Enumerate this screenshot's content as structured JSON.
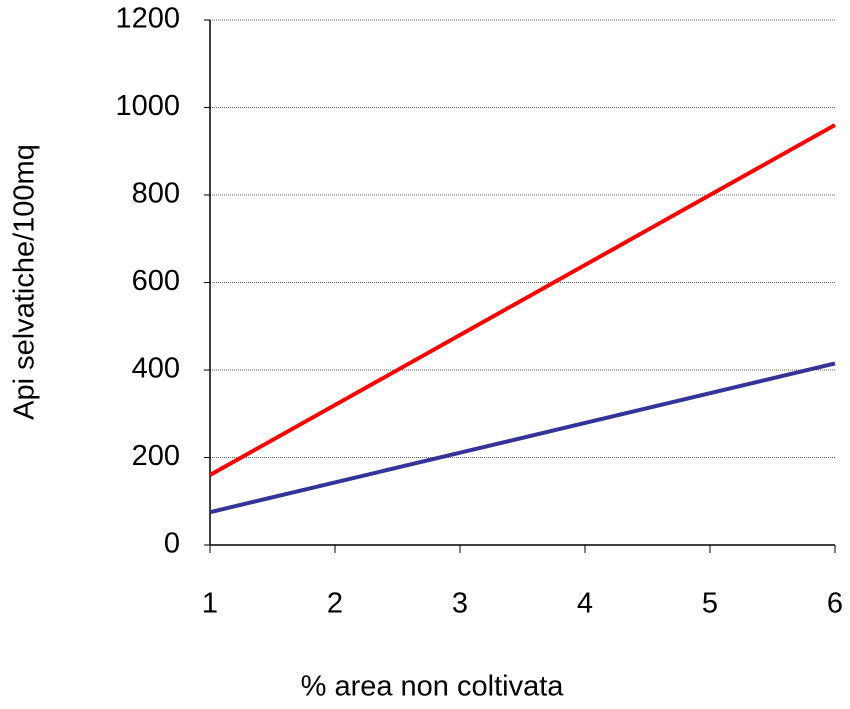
{
  "chart_data": {
    "type": "line",
    "xlabel": "% area non coltivata",
    "ylabel": "Api selvatiche/100mq",
    "x": [
      1,
      2,
      3,
      4,
      5,
      6
    ],
    "series": [
      {
        "color": "#ff0000",
        "values": [
          160,
          320,
          480,
          640,
          800,
          960
        ]
      },
      {
        "color": "#333399",
        "values": [
          75,
          143,
          211,
          279,
          347,
          415
        ]
      }
    ],
    "xlim": [
      1,
      6
    ],
    "xticks": [
      1,
      2,
      3,
      4,
      5,
      6
    ],
    "ylim": [
      0,
      1200
    ],
    "yticks": [
      0,
      200,
      400,
      600,
      800,
      1000,
      1200
    ],
    "grid": true
  }
}
